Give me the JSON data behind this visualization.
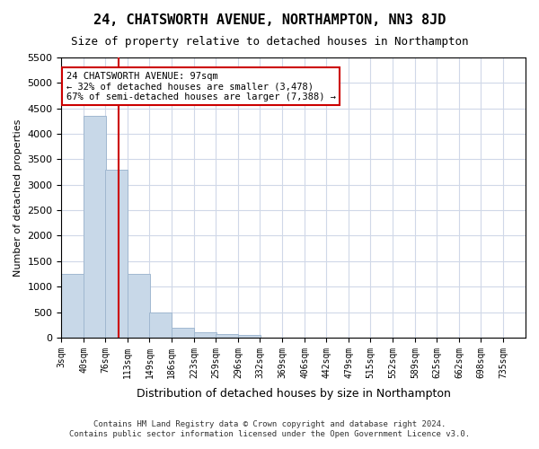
{
  "title": "24, CHATSWORTH AVENUE, NORTHAMPTON, NN3 8JD",
  "subtitle": "Size of property relative to detached houses in Northampton",
  "xlabel": "Distribution of detached houses by size in Northampton",
  "ylabel": "Number of detached properties",
  "footer_line1": "Contains HM Land Registry data © Crown copyright and database right 2024.",
  "footer_line2": "Contains public sector information licensed under the Open Government Licence v3.0.",
  "bin_labels": [
    "3sqm",
    "40sqm",
    "76sqm",
    "113sqm",
    "149sqm",
    "186sqm",
    "223sqm",
    "259sqm",
    "296sqm",
    "332sqm",
    "369sqm",
    "406sqm",
    "442sqm",
    "479sqm",
    "515sqm",
    "552sqm",
    "589sqm",
    "625sqm",
    "662sqm",
    "698sqm",
    "735sqm"
  ],
  "bin_edges": [
    3,
    40,
    76,
    113,
    149,
    186,
    223,
    259,
    296,
    332,
    369,
    406,
    442,
    479,
    515,
    552,
    589,
    625,
    662,
    698,
    735
  ],
  "bar_heights": [
    1250,
    4350,
    3300,
    1250,
    500,
    200,
    100,
    75,
    50,
    0,
    0,
    0,
    0,
    0,
    0,
    0,
    0,
    0,
    0,
    0
  ],
  "bar_color": "#c8d8e8",
  "bar_edge_color": "#a0b8d0",
  "grid_color": "#d0d8e8",
  "property_size": 97,
  "property_label": "24 CHATSWORTH AVENUE: 97sqm",
  "annotation_line1": "← 32% of detached houses are smaller (3,478)",
  "annotation_line2": "67% of semi-detached houses are larger (7,388) →",
  "annotation_box_color": "#ffffff",
  "annotation_box_edge": "#cc0000",
  "vline_color": "#cc0000",
  "ylim": [
    0,
    5500
  ],
  "yticks": [
    0,
    500,
    1000,
    1500,
    2000,
    2500,
    3000,
    3500,
    4000,
    4500,
    5000,
    5500
  ],
  "background_color": "#ffffff"
}
